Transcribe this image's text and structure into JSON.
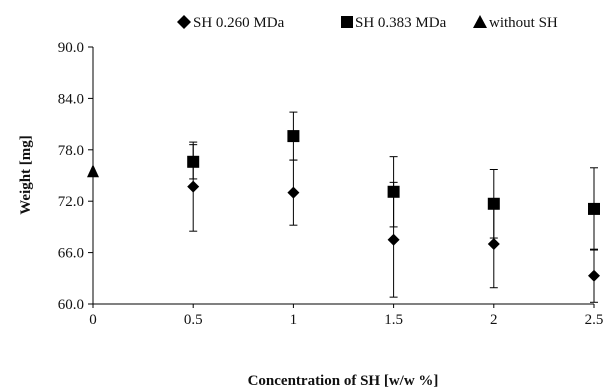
{
  "chart_data": {
    "type": "scatter",
    "xlabel": "Concentration of SH [w/w %]",
    "ylabel": "Weight [mg]",
    "x_ticks": [
      "0",
      "0.5",
      "1",
      "1.5",
      "2",
      "2.5"
    ],
    "y_ticks": [
      "60.0",
      "66.0",
      "72.0",
      "78.0",
      "84.0",
      "90.0"
    ],
    "xlim": [
      0,
      2.5
    ],
    "ylim": [
      60,
      90
    ],
    "grid": false,
    "legend_position": "top",
    "series": [
      {
        "name": "SH 0.260 MDa",
        "marker": "diamond",
        "color": "#000000",
        "x": [
          0.5,
          1,
          1.5,
          2,
          2.5
        ],
        "y": [
          73.7,
          73.0,
          67.5,
          67.0,
          63.3
        ],
        "error": [
          5.2,
          3.8,
          6.7,
          5.1,
          3.1
        ]
      },
      {
        "name": "SH 0.383 MDa",
        "marker": "square",
        "color": "#000000",
        "x": [
          0.5,
          1,
          1.5,
          2,
          2.5
        ],
        "y": [
          76.6,
          79.6,
          73.1,
          71.7,
          71.1
        ],
        "error": [
          2.0,
          2.8,
          4.1,
          4.0,
          4.8
        ]
      },
      {
        "name": "without SH",
        "marker": "triangle",
        "color": "#000000",
        "x": [
          0
        ],
        "y": [
          75.5
        ],
        "error": [
          0
        ]
      }
    ]
  }
}
